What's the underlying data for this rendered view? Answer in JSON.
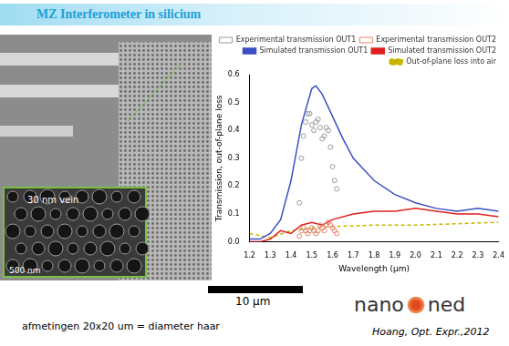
{
  "header": "MZ Interferometer in silicium",
  "image": {
    "inset_labels": [
      "30 nm vein",
      "500 nm"
    ],
    "scale_bar": "10 µm"
  },
  "caption": "afmetingen 20x20 um = diameter haar",
  "citation": "Hoang, Opt. Expr.,2012",
  "logo": [
    "nano",
    "ned"
  ],
  "chart_data": {
    "type": "line",
    "x_label": "Wavelength (µm)",
    "y_label": "Transmission, out-of-plane loss",
    "xlim": [
      1.2,
      2.4
    ],
    "xticks": [
      1.2,
      1.3,
      1.4,
      1.5,
      1.6,
      1.7,
      1.8,
      1.9,
      {
        "value": 2,
        "label": "2.0"
      },
      2.1,
      2.2,
      2.3,
      2.4
    ],
    "ylim": [
      0,
      0.6
    ],
    "yticks": [
      {
        "value": 0,
        "label": "0.0"
      },
      0.1,
      0.2,
      0.3,
      0.4,
      0.5,
      0.6
    ],
    "grid": false,
    "legend": "top",
    "series": [
      {
        "name": "Experimental transmission OUT1",
        "type": "scatter",
        "marker": "circle",
        "color": "#9a9a9a",
        "x": [
          1.44,
          1.45,
          1.46,
          1.47,
          1.48,
          1.49,
          1.5,
          1.51,
          1.52,
          1.53,
          1.54,
          1.55,
          1.56,
          1.57,
          1.58,
          1.59,
          1.6,
          1.61,
          1.62
        ],
        "values": [
          0.14,
          0.3,
          0.38,
          0.43,
          0.46,
          0.46,
          0.42,
          0.4,
          0.43,
          0.44,
          0.41,
          0.37,
          0.38,
          0.41,
          0.4,
          0.34,
          0.27,
          0.22,
          0.19
        ]
      },
      {
        "name": "Experimental transmission OUT2",
        "type": "scatter",
        "marker": "circle",
        "color": "#e8836f",
        "x": [
          1.44,
          1.45,
          1.46,
          1.47,
          1.48,
          1.49,
          1.5,
          1.51,
          1.52,
          1.53,
          1.54,
          1.55,
          1.56,
          1.57,
          1.58,
          1.59,
          1.6,
          1.61,
          1.62
        ],
        "values": [
          0.02,
          0.04,
          0.05,
          0.04,
          0.03,
          0.04,
          0.05,
          0.04,
          0.03,
          0.04,
          0.06,
          0.05,
          0.04,
          0.06,
          0.07,
          0.06,
          0.05,
          0.04,
          0.03
        ]
      },
      {
        "name": "Simulated transmission OUT1",
        "type": "line",
        "line_style": "solid",
        "color": "#3b4fc4",
        "x": [
          1.2,
          1.25,
          1.3,
          1.35,
          1.4,
          1.45,
          1.5,
          1.52,
          1.55,
          1.6,
          1.65,
          1.7,
          1.8,
          1.9,
          2.0,
          2.1,
          2.2,
          2.3,
          2.4
        ],
        "values": [
          0.01,
          0.01,
          0.03,
          0.08,
          0.22,
          0.42,
          0.55,
          0.56,
          0.53,
          0.45,
          0.37,
          0.3,
          0.22,
          0.17,
          0.14,
          0.12,
          0.11,
          0.12,
          0.11
        ]
      },
      {
        "name": "Simulated transmission OUT2",
        "type": "line",
        "line_style": "solid",
        "color": "#e02020",
        "x": [
          1.2,
          1.25,
          1.3,
          1.35,
          1.4,
          1.45,
          1.5,
          1.55,
          1.6,
          1.7,
          1.8,
          1.9,
          2.0,
          2.1,
          2.2,
          2.3,
          2.4
        ],
        "values": [
          0.0,
          0.0,
          0.01,
          0.04,
          0.03,
          0.06,
          0.07,
          0.06,
          0.08,
          0.1,
          0.11,
          0.11,
          0.12,
          0.11,
          0.1,
          0.1,
          0.09
        ]
      },
      {
        "name": "Out-of-plane loss into air",
        "type": "line",
        "line_style": "dashed",
        "color": "#c8b400",
        "x": [
          1.2,
          1.3,
          1.4,
          1.5,
          1.6,
          1.8,
          2.0,
          2.2,
          2.4
        ],
        "values": [
          0.03,
          0.015,
          0.04,
          0.05,
          0.055,
          0.06,
          0.06,
          0.065,
          0.07
        ]
      }
    ]
  }
}
